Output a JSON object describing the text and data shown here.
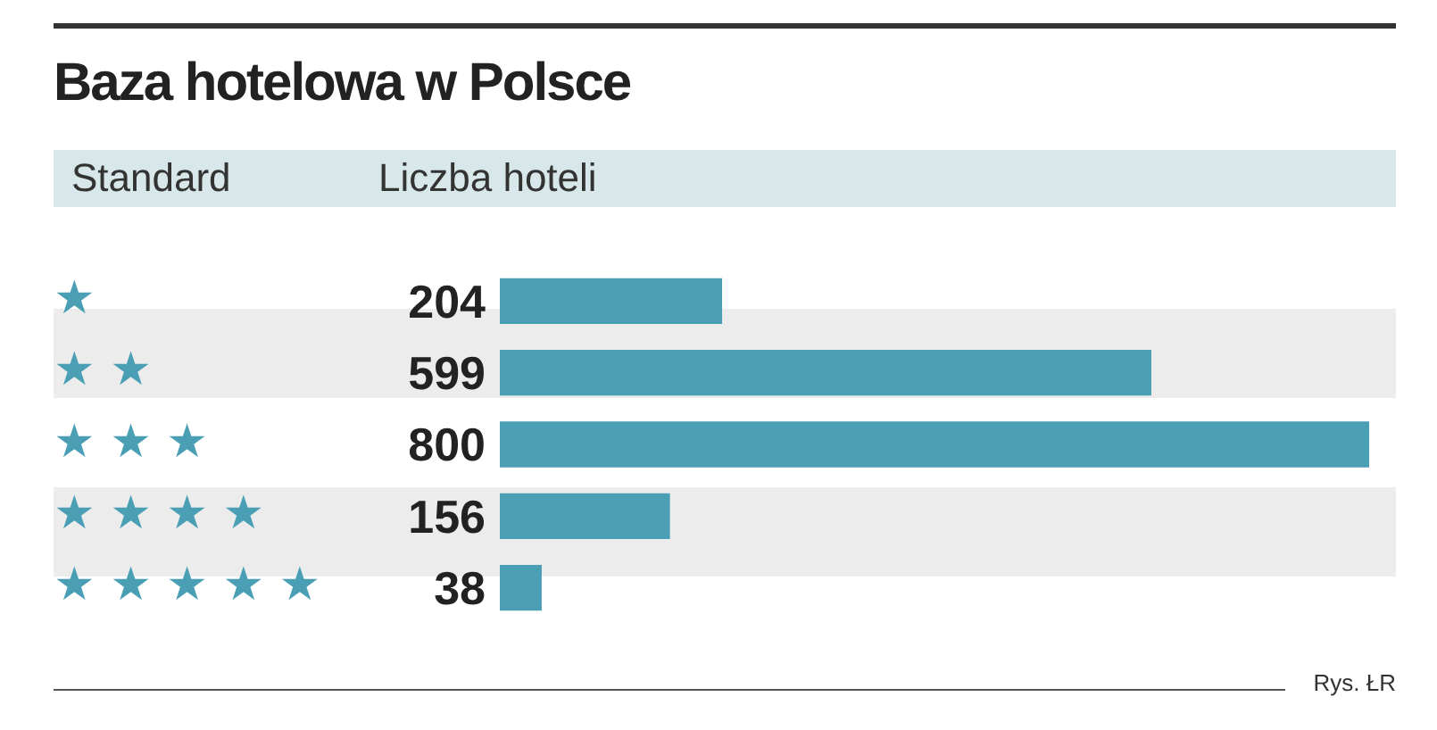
{
  "chart_data": {
    "type": "bar",
    "orientation": "horizontal",
    "title": "Baza hotelowa w Polsce",
    "ylabel": "Standard",
    "xlabel": "Liczba hoteli",
    "categories": [
      "★",
      "★ ★",
      "★ ★ ★",
      "★ ★ ★ ★",
      "★ ★ ★ ★ ★"
    ],
    "values": [
      204,
      599,
      800,
      156,
      38
    ],
    "color": "#4a9fb5",
    "data_labels": true,
    "annotations": [
      "Rys. ŁR"
    ]
  }
}
